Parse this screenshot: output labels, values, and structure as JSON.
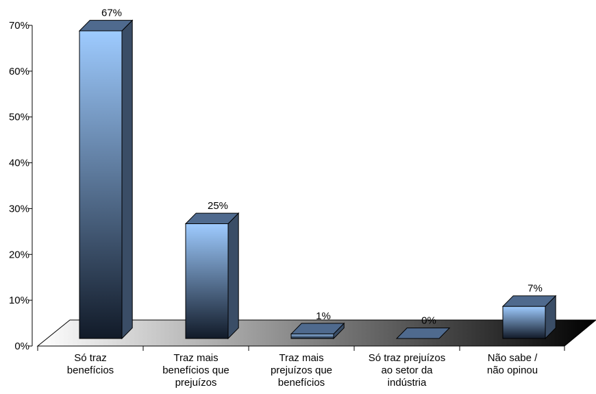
{
  "chart_data": {
    "type": "bar",
    "style": "3d",
    "categories": [
      [
        "Só traz",
        "benefícios"
      ],
      [
        "Traz mais",
        "benefícios que",
        "prejuízos"
      ],
      [
        "Traz mais",
        "prejuízos que",
        "benefícios"
      ],
      [
        "Só traz prejuízos",
        "ao setor da",
        "indústria"
      ],
      [
        "Não sabe /",
        "não opinou"
      ]
    ],
    "values": [
      67,
      25,
      1,
      0,
      7
    ],
    "data_labels": [
      "67%",
      "25%",
      "1%",
      "0%",
      "7%"
    ],
    "ylim": [
      0,
      70
    ],
    "yticks": [
      0,
      10,
      20,
      30,
      40,
      50,
      60,
      70
    ],
    "ytick_labels": [
      "0%",
      "10%",
      "20%",
      "30%",
      "40%",
      "50%",
      "60%",
      "70%"
    ],
    "colors": {
      "bar_top": "#9ecbff",
      "bar_bottom": "#111a28",
      "bar_side": "#3a4d66",
      "bar_cap": "#4f6a8e",
      "floor_light": "#ffffff",
      "floor_dark": "#000000"
    },
    "grid": false,
    "legend": "none"
  }
}
